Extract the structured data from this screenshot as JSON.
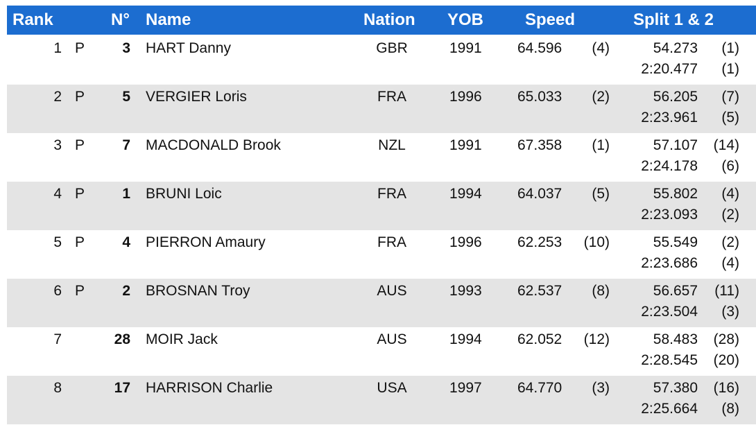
{
  "header": {
    "columns": [
      "Rank",
      "N°",
      "Name",
      "Nation",
      "YOB",
      "Speed",
      "Split 1 & 2"
    ]
  },
  "table": {
    "rows": [
      {
        "rank": "1",
        "qualifier": "P",
        "bib": "3",
        "name": "HART Danny",
        "nation": "GBR",
        "yob": "1991",
        "speed": "64.596",
        "speed_rank": "(4)",
        "split1": "54.273",
        "split1_rank": "(1)",
        "split2": "2:20.477",
        "split2_rank": "(1)"
      },
      {
        "rank": "2",
        "qualifier": "P",
        "bib": "5",
        "name": "VERGIER Loris",
        "nation": "FRA",
        "yob": "1996",
        "speed": "65.033",
        "speed_rank": "(2)",
        "split1": "56.205",
        "split1_rank": "(7)",
        "split2": "2:23.961",
        "split2_rank": "(5)"
      },
      {
        "rank": "3",
        "qualifier": "P",
        "bib": "7",
        "name": "MACDONALD Brook",
        "nation": "NZL",
        "yob": "1991",
        "speed": "67.358",
        "speed_rank": "(1)",
        "split1": "57.107",
        "split1_rank": "(14)",
        "split2": "2:24.178",
        "split2_rank": "(6)"
      },
      {
        "rank": "4",
        "qualifier": "P",
        "bib": "1",
        "name": "BRUNI Loic",
        "nation": "FRA",
        "yob": "1994",
        "speed": "64.037",
        "speed_rank": "(5)",
        "split1": "55.802",
        "split1_rank": "(4)",
        "split2": "2:23.093",
        "split2_rank": "(2)"
      },
      {
        "rank": "5",
        "qualifier": "P",
        "bib": "4",
        "name": "PIERRON Amaury",
        "nation": "FRA",
        "yob": "1996",
        "speed": "62.253",
        "speed_rank": "(10)",
        "split1": "55.549",
        "split1_rank": "(2)",
        "split2": "2:23.686",
        "split2_rank": "(4)"
      },
      {
        "rank": "6",
        "qualifier": "P",
        "bib": "2",
        "name": "BROSNAN Troy",
        "nation": "AUS",
        "yob": "1993",
        "speed": "62.537",
        "speed_rank": "(8)",
        "split1": "56.657",
        "split1_rank": "(11)",
        "split2": "2:23.504",
        "split2_rank": "(3)"
      },
      {
        "rank": "7",
        "bib": "28",
        "name": "MOIR Jack",
        "nation": "AUS",
        "yob": "1994",
        "speed": "62.052",
        "speed_rank": "(12)",
        "split1": "58.483",
        "split1_rank": "(28)",
        "split2": "2:28.545",
        "split2_rank": "(20)"
      },
      {
        "rank": "8",
        "bib": "17",
        "name": "HARRISON Charlie",
        "nation": "USA",
        "yob": "1997",
        "speed": "64.770",
        "speed_rank": "(3)",
        "split1": "57.380",
        "split1_rank": "(16)",
        "split2": "2:25.664",
        "split2_rank": "(8)"
      }
    ]
  }
}
